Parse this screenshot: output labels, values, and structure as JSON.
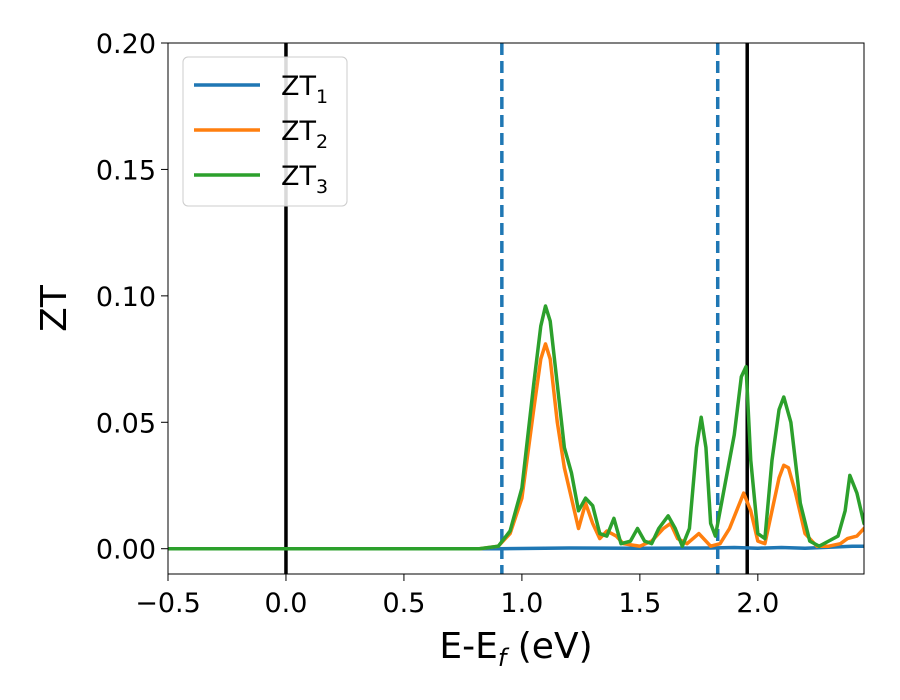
{
  "chart_data": {
    "type": "line",
    "xlabel": "E-E",
    "xlabel_sub": "f",
    "xlabel_unit": " (eV)",
    "ylabel": "ZT",
    "xlim": [
      -0.5,
      2.45
    ],
    "ylim": [
      -0.01,
      0.2
    ],
    "xticks": [
      -0.5,
      0.0,
      0.5,
      1.0,
      1.5,
      2.0
    ],
    "xtick_labels": [
      "−0.5",
      "0.0",
      "0.5",
      "1.0",
      "1.5",
      "2.0"
    ],
    "yticks": [
      0.0,
      0.05,
      0.1,
      0.15,
      0.2
    ],
    "ytick_labels": [
      "0.00",
      "0.05",
      "0.10",
      "0.15",
      "0.20"
    ],
    "grid": false,
    "legend_position": "top-left",
    "vlines": [
      {
        "x": 0.0,
        "style": "solid",
        "color": "#000000"
      },
      {
        "x": 0.915,
        "style": "dashed",
        "color": "#1f77b4"
      },
      {
        "x": 1.83,
        "style": "dashed",
        "color": "#1f77b4"
      },
      {
        "x": 1.955,
        "style": "solid",
        "color": "#000000"
      }
    ],
    "series": [
      {
        "name": "ZT",
        "name_sub": "1",
        "color": "#1f77b4",
        "points": [
          [
            -0.5,
            0
          ],
          [
            0.9,
            0
          ],
          [
            1.2,
            0.0003
          ],
          [
            1.5,
            0.0002
          ],
          [
            1.8,
            0.0003
          ],
          [
            1.9,
            0.0005
          ],
          [
            2.0,
            0.0002
          ],
          [
            2.1,
            0.0005
          ],
          [
            2.2,
            0.0002
          ],
          [
            2.3,
            0.0006
          ],
          [
            2.4,
            0.001
          ],
          [
            2.45,
            0.001
          ]
        ]
      },
      {
        "name": "ZT",
        "name_sub": "2",
        "color": "#ff7f0e",
        "points": [
          [
            -0.5,
            0
          ],
          [
            0.82,
            0
          ],
          [
            0.9,
            0.001
          ],
          [
            0.95,
            0.006
          ],
          [
            1.0,
            0.02
          ],
          [
            1.05,
            0.055
          ],
          [
            1.08,
            0.075
          ],
          [
            1.1,
            0.081
          ],
          [
            1.12,
            0.075
          ],
          [
            1.15,
            0.05
          ],
          [
            1.18,
            0.032
          ],
          [
            1.21,
            0.02
          ],
          [
            1.24,
            0.008
          ],
          [
            1.27,
            0.018
          ],
          [
            1.3,
            0.01
          ],
          [
            1.33,
            0.004
          ],
          [
            1.36,
            0.007
          ],
          [
            1.4,
            0.005
          ],
          [
            1.43,
            0.002
          ],
          [
            1.5,
            0.001
          ],
          [
            1.55,
            0.003
          ],
          [
            1.6,
            0.008
          ],
          [
            1.63,
            0.01
          ],
          [
            1.66,
            0.004
          ],
          [
            1.7,
            0.002
          ],
          [
            1.75,
            0.006
          ],
          [
            1.8,
            0.001
          ],
          [
            1.84,
            0.002
          ],
          [
            1.88,
            0.008
          ],
          [
            1.91,
            0.015
          ],
          [
            1.94,
            0.022
          ],
          [
            1.97,
            0.015
          ],
          [
            2.0,
            0.003
          ],
          [
            2.03,
            0.002
          ],
          [
            2.06,
            0.015
          ],
          [
            2.09,
            0.028
          ],
          [
            2.11,
            0.033
          ],
          [
            2.13,
            0.032
          ],
          [
            2.16,
            0.022
          ],
          [
            2.2,
            0.006
          ],
          [
            2.25,
            0.001
          ],
          [
            2.3,
            0.001
          ],
          [
            2.35,
            0.002
          ],
          [
            2.38,
            0.004
          ],
          [
            2.42,
            0.005
          ],
          [
            2.45,
            0.008
          ]
        ]
      },
      {
        "name": "ZT",
        "name_sub": "3",
        "color": "#2ca02c",
        "points": [
          [
            -0.5,
            0
          ],
          [
            0.82,
            0
          ],
          [
            0.9,
            0.001
          ],
          [
            0.95,
            0.007
          ],
          [
            1.0,
            0.024
          ],
          [
            1.05,
            0.065
          ],
          [
            1.08,
            0.088
          ],
          [
            1.1,
            0.096
          ],
          [
            1.12,
            0.09
          ],
          [
            1.15,
            0.065
          ],
          [
            1.18,
            0.04
          ],
          [
            1.21,
            0.03
          ],
          [
            1.24,
            0.015
          ],
          [
            1.27,
            0.02
          ],
          [
            1.3,
            0.017
          ],
          [
            1.33,
            0.006
          ],
          [
            1.36,
            0.005
          ],
          [
            1.39,
            0.012
          ],
          [
            1.42,
            0.002
          ],
          [
            1.46,
            0.003
          ],
          [
            1.49,
            0.008
          ],
          [
            1.52,
            0.003
          ],
          [
            1.55,
            0.002
          ],
          [
            1.58,
            0.008
          ],
          [
            1.62,
            0.013
          ],
          [
            1.65,
            0.008
          ],
          [
            1.68,
            0.001
          ],
          [
            1.71,
            0.008
          ],
          [
            1.74,
            0.04
          ],
          [
            1.76,
            0.052
          ],
          [
            1.78,
            0.04
          ],
          [
            1.8,
            0.01
          ],
          [
            1.82,
            0.005
          ],
          [
            1.86,
            0.025
          ],
          [
            1.9,
            0.045
          ],
          [
            1.93,
            0.068
          ],
          [
            1.95,
            0.072
          ],
          [
            1.97,
            0.035
          ],
          [
            2.0,
            0.006
          ],
          [
            2.03,
            0.004
          ],
          [
            2.06,
            0.035
          ],
          [
            2.09,
            0.055
          ],
          [
            2.11,
            0.06
          ],
          [
            2.14,
            0.05
          ],
          [
            2.18,
            0.018
          ],
          [
            2.22,
            0.003
          ],
          [
            2.26,
            0.001
          ],
          [
            2.3,
            0.003
          ],
          [
            2.34,
            0.005
          ],
          [
            2.37,
            0.015
          ],
          [
            2.39,
            0.029
          ],
          [
            2.42,
            0.022
          ],
          [
            2.45,
            0.01
          ]
        ]
      }
    ]
  }
}
